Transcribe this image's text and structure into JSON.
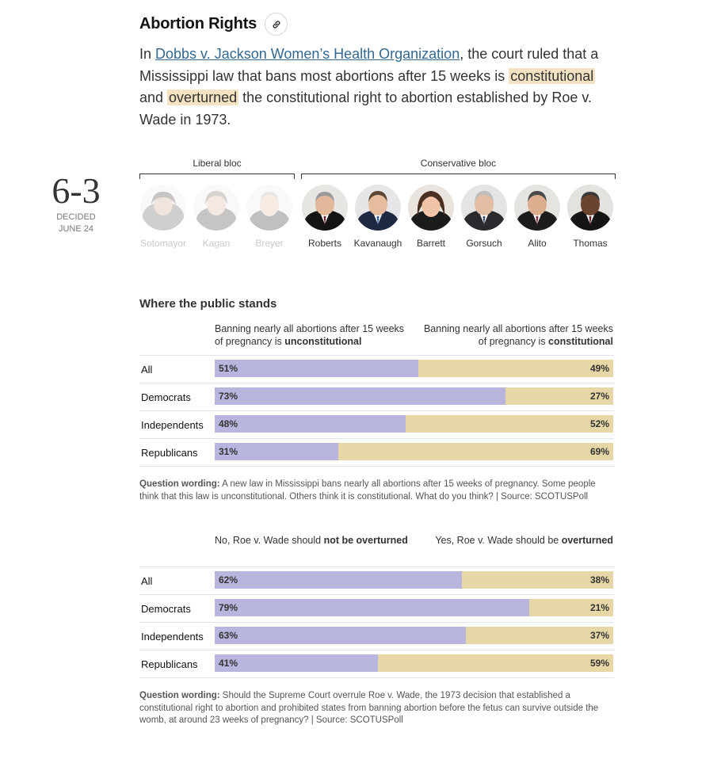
{
  "header": {
    "title": "Abortion Rights"
  },
  "intro": {
    "pre": "In ",
    "case_link": "Dobbs v. Jackson Women’s Health Organization",
    "part1": ", the court ruled that a Mississippi law that bans most abortions after 15 weeks is ",
    "hl1": "constitutional",
    "part2": " and ",
    "hl2": "overturned",
    "part3": " the constitutional right to abortion established by Roe v. Wade in 1973."
  },
  "decision": {
    "vote": "6-3",
    "decided_label": "DECIDED",
    "date": "JUNE 24"
  },
  "blocs": {
    "liberal": "Liberal bloc",
    "conservative": "Conservative bloc"
  },
  "justices": [
    {
      "name": "Sotomayor",
      "majority": false
    },
    {
      "name": "Kagan",
      "majority": false
    },
    {
      "name": "Breyer",
      "majority": false
    },
    {
      "name": "Roberts",
      "majority": true
    },
    {
      "name": "Kavanaugh",
      "majority": true
    },
    {
      "name": "Barrett",
      "majority": true
    },
    {
      "name": "Gorsuch",
      "majority": true
    },
    {
      "name": "Alito",
      "majority": true
    },
    {
      "name": "Thomas",
      "majority": true
    }
  ],
  "colors": {
    "left_series": "#b8b6de",
    "right_series": "#e7d7a6",
    "highlight": "#f4e3c3",
    "link": "#326891"
  },
  "section_title": "Where the public stands",
  "chart_data": [
    {
      "type": "bar",
      "stacked": true,
      "orientation": "horizontal",
      "header_left": {
        "pre": "Banning nearly all abortions after 15 weeks of pregnancy is ",
        "bold": "unconstitutional"
      },
      "header_right": {
        "pre": "Banning nearly all abortions after 15 weeks of pregnancy is ",
        "bold": "constitutional"
      },
      "categories": [
        "All",
        "Democrats",
        "Independents",
        "Republicans"
      ],
      "series": [
        {
          "name": "Banning nearly all abortions after 15 weeks of pregnancy is unconstitutional",
          "values": [
            51,
            73,
            48,
            31
          ]
        },
        {
          "name": "Banning nearly all abortions after 15 weeks of pregnancy is constitutional",
          "values": [
            49,
            27,
            52,
            69
          ]
        }
      ],
      "labels_left": [
        "51%",
        "73%",
        "48%",
        "31%"
      ],
      "labels_right": [
        "49%",
        "27%",
        "52%",
        "69%"
      ],
      "xlim": [
        0,
        100
      ],
      "note_label": "Question wording:",
      "note_text": " A new law in Mississippi bans nearly all abortions after 15 weeks of pregnancy. Some people think that this law is unconstitutional. Others think it is constitutional. What do you think? | Source: SCOTUSPoll"
    },
    {
      "type": "bar",
      "stacked": true,
      "orientation": "horizontal",
      "header_left": {
        "pre": "No, Roe v. Wade should ",
        "bold": "not be overturned"
      },
      "header_right": {
        "pre": "Yes, Roe v. Wade should be ",
        "bold": "overturned"
      },
      "categories": [
        "All",
        "Democrats",
        "Independents",
        "Republicans"
      ],
      "series": [
        {
          "name": "No, Roe v. Wade should not be overturned",
          "values": [
            62,
            79,
            63,
            41
          ]
        },
        {
          "name": "Yes, Roe v. Wade should be overturned",
          "values": [
            38,
            21,
            37,
            59
          ]
        }
      ],
      "labels_left": [
        "62%",
        "79%",
        "63%",
        "41%"
      ],
      "labels_right": [
        "38%",
        "21%",
        "37%",
        "59%"
      ],
      "xlim": [
        0,
        100
      ],
      "note_label": "Question wording:",
      "note_text": " Should the Supreme Court overrule Roe v. Wade, the 1973 decision that established a constitutional right to abortion and prohibited states from banning abortion before the fetus can survive outside the womb, at around 23 weeks of pregnancy? | Source: SCOTUSPoll"
    }
  ]
}
